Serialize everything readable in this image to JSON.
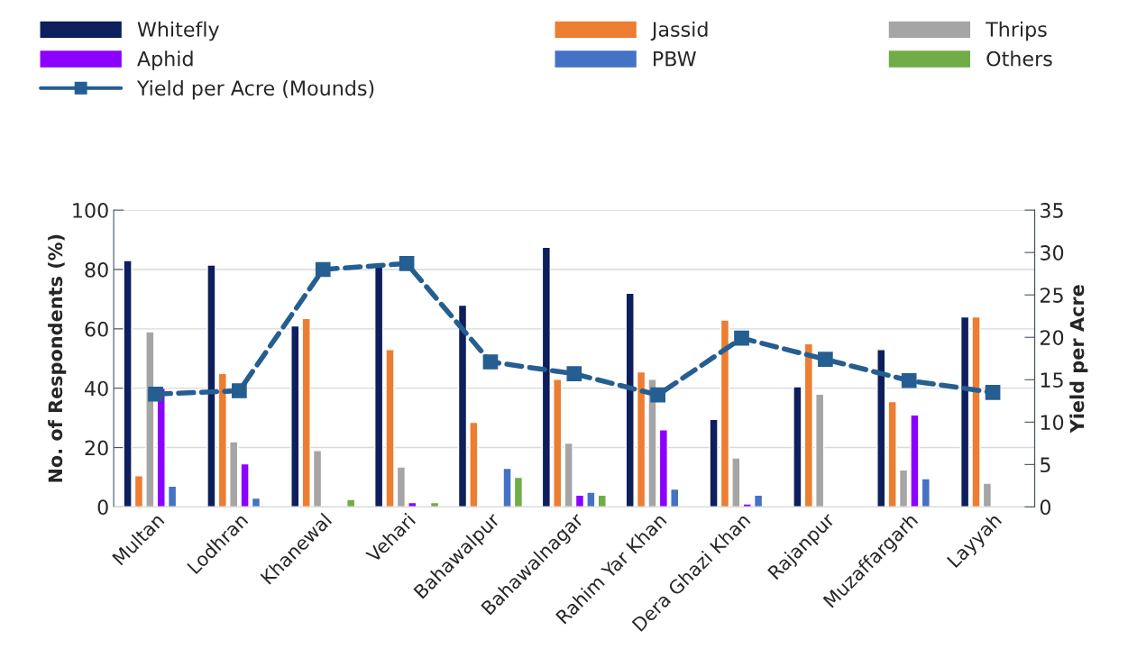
{
  "chart_data": {
    "type": "bar",
    "categories": [
      "Multan",
      "Lodhran",
      "Khanewal",
      "Vehari",
      "Bahawalpur",
      "Bahawalnagar",
      "Rahim Yar Khan",
      "Dera Ghazi Khan",
      "Rajanpur",
      "Muzaffargarh",
      "Layyah"
    ],
    "series": [
      {
        "name": "Whitefly",
        "color": "#0d1f5c",
        "values": [
          83,
          81.5,
          61,
          81,
          68,
          87.5,
          72,
          29.5,
          40.5,
          53,
          64
        ]
      },
      {
        "name": "Jassid",
        "color": "#ed7d31",
        "values": [
          10.5,
          45,
          63.5,
          53,
          28.5,
          43,
          45.5,
          63,
          55,
          35.5,
          64
        ]
      },
      {
        "name": "Thrips",
        "color": "#a5a5a5",
        "values": [
          59,
          22,
          19,
          13.5,
          null,
          21.5,
          43,
          16.5,
          38,
          12.5,
          8
        ]
      },
      {
        "name": "Aphid",
        "color": "#8b00ff",
        "values": [
          40,
          14.5,
          null,
          1.5,
          null,
          4,
          26,
          1,
          null,
          31,
          null
        ]
      },
      {
        "name": "PBW",
        "color": "#4472c4",
        "values": [
          7,
          3,
          null,
          null,
          13,
          5,
          6,
          4,
          null,
          9.5,
          null
        ]
      },
      {
        "name": "Others",
        "color": "#70ad47",
        "values": [
          null,
          null,
          2.5,
          1.5,
          10,
          4,
          null,
          null,
          null,
          null,
          null
        ]
      },
      {
        "name": "Yield per Acre (Mounds)",
        "type": "line",
        "axis": "y2",
        "color": "#255e91",
        "marker": "square",
        "line_style": "dashed",
        "values": [
          13.3,
          13.7,
          28,
          28.7,
          17.1,
          15.7,
          13.2,
          19.9,
          17.4,
          14.9,
          13.5
        ]
      }
    ],
    "ylabel": "No. of Respondents (%)",
    "y2label": "Yield per Acre",
    "ylim": [
      0,
      100
    ],
    "yticks": [
      0,
      20,
      40,
      60,
      80,
      100
    ],
    "y2lim": [
      0,
      35
    ],
    "y2ticks": [
      0,
      5,
      10,
      15,
      20,
      25,
      30,
      35
    ],
    "grid": "y",
    "legend": "top"
  }
}
